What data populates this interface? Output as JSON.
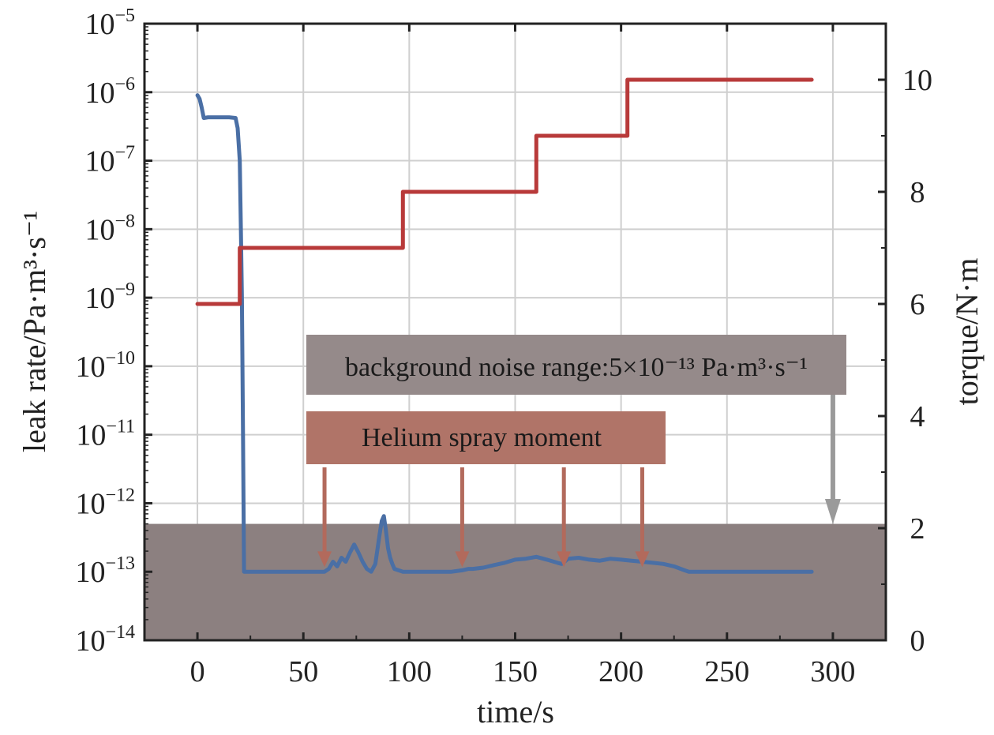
{
  "chart_data": {
    "type": "line",
    "xlabel": "time/s",
    "ylabel_left": "leak rate/Pa·m³·s⁻¹",
    "ylabel_right": "torque/N·m",
    "xlim": [
      -25,
      325
    ],
    "xticks": [
      0,
      50,
      100,
      150,
      200,
      250,
      300
    ],
    "ylim_left_log10": [
      -14,
      -5
    ],
    "yticks_left_exp": [
      -5,
      -6,
      -7,
      -8,
      -9,
      -10,
      -11,
      -12,
      -13,
      -14
    ],
    "ylim_right": [
      0,
      11
    ],
    "yticks_right": [
      0,
      2,
      4,
      6,
      8,
      10
    ],
    "grid": true,
    "series": [
      {
        "name": "",
        "axis": "left",
        "color": "#4a6fa5",
        "x": [
          0,
          1,
          2,
          3,
          5,
          10,
          15,
          18,
          19,
          20,
          20.5,
          21,
          21.5,
          22,
          40,
          55,
          60,
          62,
          64,
          66,
          68,
          70,
          72,
          74,
          76,
          78,
          80,
          82,
          84,
          86,
          87,
          88,
          89,
          90,
          91,
          92,
          93,
          95,
          97,
          100,
          110,
          120,
          125,
          128,
          130,
          135,
          140,
          145,
          150,
          155,
          160,
          165,
          170,
          172,
          175,
          180,
          185,
          190,
          195,
          200,
          205,
          210,
          215,
          220,
          225,
          230,
          232,
          240,
          260,
          280,
          290
        ],
        "y": [
          9e-07,
          8e-07,
          6e-07,
          4.2e-07,
          4.3e-07,
          4.3e-07,
          4.3e-07,
          4.2e-07,
          3e-07,
          1e-07,
          1e-08,
          1e-09,
          1e-11,
          1e-13,
          1e-13,
          1e-13,
          1e-13,
          1.1e-13,
          1.4e-13,
          1.2e-13,
          1.6e-13,
          1.4e-13,
          1.9e-13,
          2.5e-13,
          1.9e-13,
          1.4e-13,
          1.1e-13,
          1e-13,
          1.3e-13,
          3.5e-13,
          5.5e-13,
          6.5e-13,
          4e-13,
          2.2e-13,
          1.6e-13,
          1.3e-13,
          1.1e-13,
          1.05e-13,
          1e-13,
          1e-13,
          1e-13,
          1e-13,
          1.05e-13,
          1.1e-13,
          1.1e-13,
          1.15e-13,
          1.25e-13,
          1.35e-13,
          1.5e-13,
          1.55e-13,
          1.65e-13,
          1.5e-13,
          1.35e-13,
          1.3e-13,
          1.55e-13,
          1.6e-13,
          1.5e-13,
          1.45e-13,
          1.55e-13,
          1.5e-13,
          1.45e-13,
          1.4e-13,
          1.35e-13,
          1.3e-13,
          1.2e-13,
          1.05e-13,
          1e-13,
          1e-13,
          1e-13,
          1e-13,
          1e-13
        ]
      },
      {
        "name": "",
        "axis": "right",
        "color": "#b83a3a",
        "x": [
          0,
          20,
          20,
          97,
          97,
          160,
          160,
          203,
          203,
          290
        ],
        "y": [
          6,
          6,
          7,
          7,
          8,
          8,
          9,
          9,
          10,
          10
        ]
      }
    ],
    "background_band": {
      "y_from_exp": -14,
      "y_to": 5e-13,
      "color": "#8c8080"
    },
    "annotations": {
      "background_box": {
        "text": "background noise range:5×10⁻¹³ Pa·m³·s⁻¹",
        "color": "#958a8a",
        "arrow_x": 300
      },
      "helium_box": {
        "text": "Helium spray moment",
        "color": "#b07468",
        "arrow_x": [
          60,
          125,
          173,
          210
        ]
      }
    }
  }
}
